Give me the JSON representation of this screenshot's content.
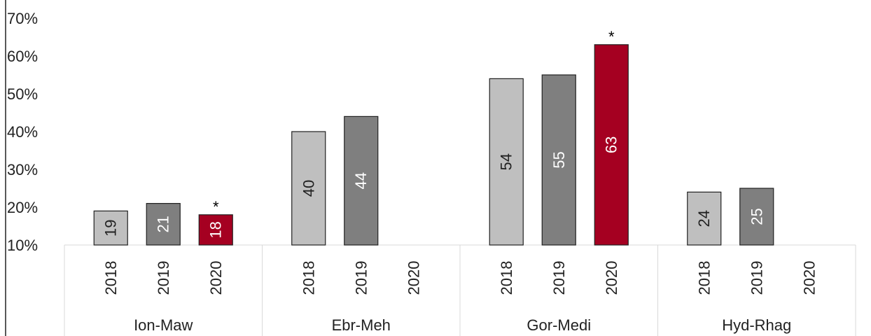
{
  "chart_data": {
    "type": "bar",
    "title": "",
    "xlabel": "",
    "ylabel": "",
    "ylim": [
      10,
      70
    ],
    "y_ticks": [
      "10%",
      "20%",
      "30%",
      "40%",
      "50%",
      "60%",
      "70%"
    ],
    "y_tick_values": [
      10,
      20,
      30,
      40,
      50,
      60,
      70
    ],
    "grid": false,
    "legend": "none",
    "groups": [
      {
        "name": "Ion-Maw",
        "bars": [
          {
            "year": "2018",
            "value": 19,
            "label": "19",
            "color": "#bfbfbf",
            "label_color": "#222222",
            "star": false
          },
          {
            "year": "2019",
            "value": 21,
            "label": "21",
            "color": "#7f7f7f",
            "label_color": "#ffffff",
            "star": false
          },
          {
            "year": "2020",
            "value": 18,
            "label": "18",
            "color": "#a50021",
            "label_color": "#ffffff",
            "star": true
          }
        ]
      },
      {
        "name": "Ebr-Meh",
        "bars": [
          {
            "year": "2018",
            "value": 40,
            "label": "40",
            "color": "#bfbfbf",
            "label_color": "#222222",
            "star": false
          },
          {
            "year": "2019",
            "value": 44,
            "label": "44",
            "color": "#7f7f7f",
            "label_color": "#ffffff",
            "star": false
          },
          {
            "year": "2020",
            "value": null,
            "label": "",
            "color": "#a50021",
            "label_color": "#ffffff",
            "star": false
          }
        ]
      },
      {
        "name": "Gor-Medi",
        "bars": [
          {
            "year": "2018",
            "value": 54,
            "label": "54",
            "color": "#bfbfbf",
            "label_color": "#222222",
            "star": false
          },
          {
            "year": "2019",
            "value": 55,
            "label": "55",
            "color": "#7f7f7f",
            "label_color": "#ffffff",
            "star": false
          },
          {
            "year": "2020",
            "value": 63,
            "label": "63",
            "color": "#a50021",
            "label_color": "#ffffff",
            "star": true
          }
        ]
      },
      {
        "name": "Hyd-Rhag",
        "bars": [
          {
            "year": "2018",
            "value": 24,
            "label": "24",
            "color": "#bfbfbf",
            "label_color": "#222222",
            "star": false
          },
          {
            "year": "2019",
            "value": 25,
            "label": "25",
            "color": "#7f7f7f",
            "label_color": "#ffffff",
            "star": false
          },
          {
            "year": "2020",
            "value": null,
            "label": "",
            "color": "#a50021",
            "label_color": "#ffffff",
            "star": false
          }
        ]
      }
    ],
    "star_symbol": "*",
    "colors": {
      "2018": "#bfbfbf",
      "2019": "#7f7f7f",
      "2020": "#a50021",
      "bar_outline": "#222222",
      "axis": "#222222",
      "table_border": "#d9d9d9"
    }
  }
}
